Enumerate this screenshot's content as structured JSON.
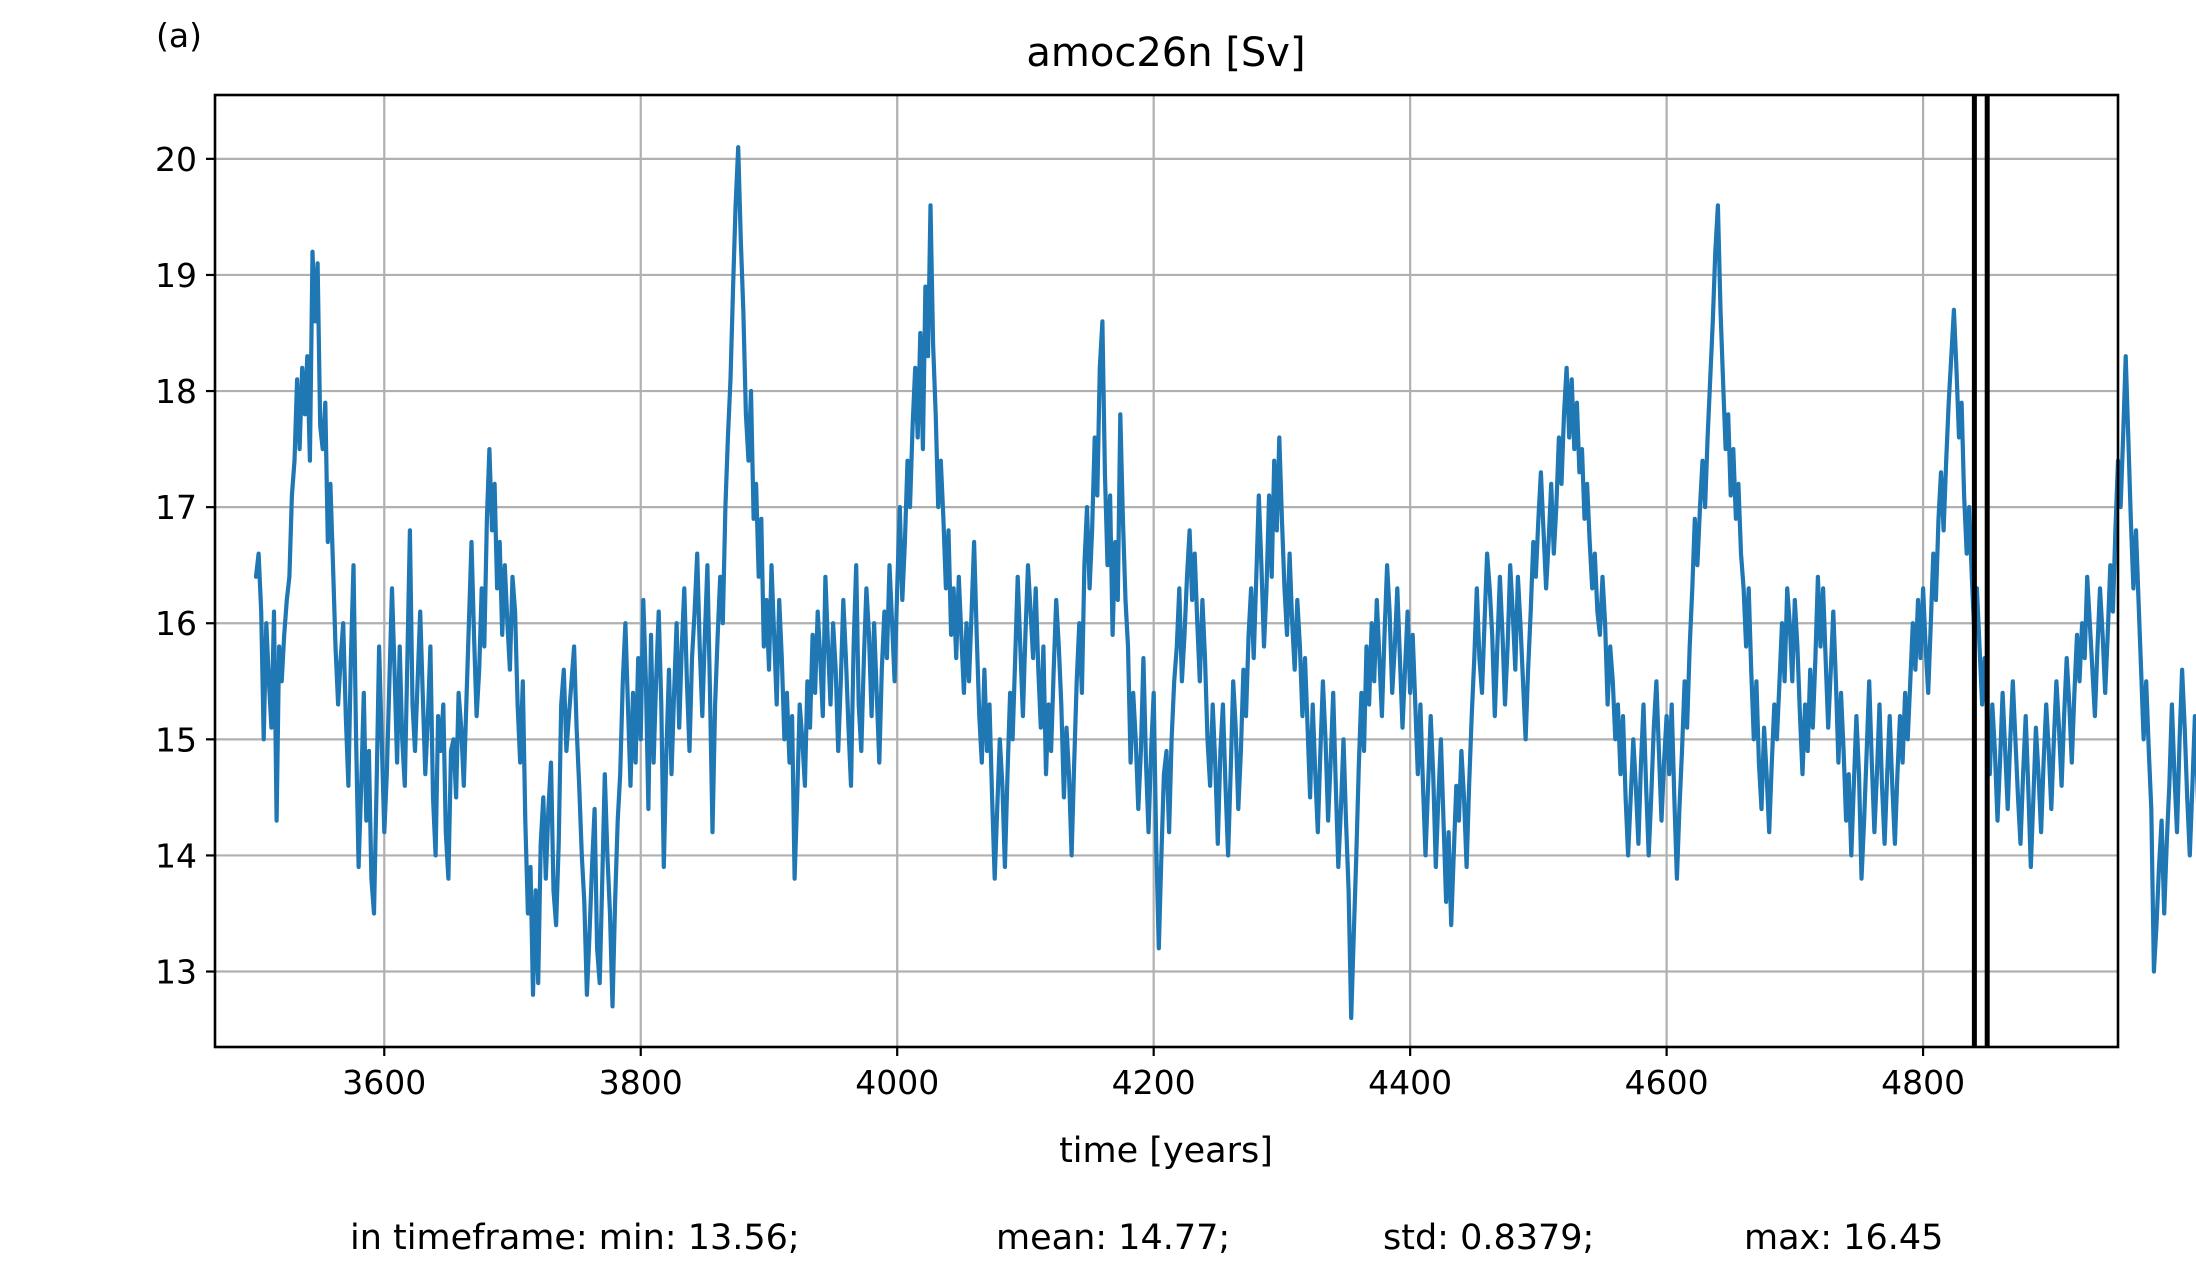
{
  "chart_data": {
    "type": "line",
    "panel_label": "(a)",
    "title": "amoc26n [Sv]",
    "xlabel": "time [years]",
    "ylabel": "",
    "xlim": [
      3468,
      4952
    ],
    "ylim": [
      12.35,
      20.55
    ],
    "xticks": [
      3600,
      3800,
      4000,
      4200,
      4400,
      4600,
      4800
    ],
    "yticks": [
      13,
      14,
      15,
      16,
      17,
      18,
      19,
      20
    ],
    "grid": true,
    "legend": "none",
    "vertical_markers": [
      4840,
      4850
    ],
    "stats": {
      "prefix": "in timeframe: min: 13.56;",
      "mean": "mean: 14.77;",
      "std": "std: 0.8379;",
      "max": "max: 16.45"
    },
    "colors": {
      "series": "#1f77b4",
      "grid": "#b0b0b0",
      "markers": "#000000"
    },
    "series": [
      {
        "x_start": 3500,
        "x_step": 2,
        "values": [
          16.4,
          16.6,
          16.1,
          15.0,
          16.0,
          15.5,
          15.1,
          16.1,
          14.3,
          15.8,
          15.5,
          15.9,
          16.2,
          16.4,
          17.1,
          17.4,
          18.1,
          17.5,
          18.2,
          17.8,
          18.3,
          17.4,
          19.2,
          18.6,
          19.1,
          17.7,
          17.5,
          17.9,
          16.7,
          17.2,
          16.5,
          15.8,
          15.3,
          15.7,
          16.0,
          15.2,
          14.6,
          15.7,
          16.5,
          15.0,
          13.9,
          14.6,
          15.4,
          14.3,
          14.9,
          13.8,
          13.5,
          14.6,
          15.8,
          15.0,
          14.2,
          14.7,
          15.5,
          16.3,
          15.6,
          14.8,
          15.8,
          15.0,
          14.6,
          15.7,
          16.8,
          15.3,
          14.9,
          15.5,
          16.1,
          15.4,
          14.7,
          15.2,
          15.8,
          14.5,
          14.0,
          15.2,
          14.9,
          15.3,
          14.2,
          13.8,
          14.9,
          15.0,
          14.5,
          15.4,
          15.1,
          14.6,
          15.3,
          16.0,
          16.7,
          15.9,
          15.2,
          15.6,
          16.3,
          15.8,
          16.9,
          17.5,
          16.8,
          17.2,
          16.3,
          16.7,
          15.9,
          16.5,
          16.0,
          15.6,
          16.4,
          16.1,
          15.3,
          14.8,
          15.5,
          14.3,
          13.5,
          13.9,
          12.8,
          13.7,
          12.9,
          14.1,
          14.5,
          13.8,
          14.4,
          14.8,
          13.7,
          13.4,
          14.1,
          15.3,
          15.6,
          14.9,
          15.2,
          15.5,
          15.8,
          15.1,
          14.6,
          14.0,
          13.6,
          12.8,
          13.3,
          13.9,
          14.4,
          13.2,
          12.9,
          13.8,
          14.7,
          14.0,
          13.5,
          12.7,
          13.6,
          14.3,
          14.7,
          15.5,
          16.0,
          15.3,
          14.6,
          15.4,
          14.8,
          15.7,
          15.0,
          16.2,
          15.5,
          14.4,
          15.9,
          14.8,
          15.5,
          16.1,
          15.3,
          13.9,
          14.9,
          15.6,
          14.7,
          15.4,
          16.0,
          15.1,
          15.8,
          16.3,
          15.5,
          14.9,
          15.7,
          16.1,
          16.6,
          15.8,
          15.2,
          15.9,
          16.5,
          15.4,
          14.2,
          15.3,
          15.9,
          16.4,
          16.0,
          17.0,
          17.6,
          18.1,
          18.9,
          19.6,
          20.1,
          19.3,
          18.7,
          17.8,
          17.4,
          18.0,
          16.9,
          17.2,
          16.4,
          16.9,
          15.8,
          16.2,
          15.6,
          16.5,
          15.9,
          15.3,
          16.2,
          15.7,
          15.0,
          15.4,
          14.8,
          15.2,
          13.8,
          14.5,
          15.3,
          15.0,
          14.6,
          15.5,
          15.1,
          15.9,
          15.4,
          16.1,
          15.7,
          15.2,
          16.4,
          15.8,
          15.3,
          16.0,
          15.6,
          14.9,
          15.5,
          16.2,
          15.7,
          15.1,
          14.6,
          15.8,
          16.5,
          15.3,
          14.9,
          15.7,
          16.3,
          15.9,
          15.2,
          16.0,
          15.4,
          14.8,
          15.6,
          16.1,
          15.7,
          16.5,
          16.0,
          15.5,
          16.3,
          17.0,
          16.2,
          16.7,
          17.4,
          17.0,
          17.7,
          18.2,
          17.6,
          18.5,
          17.5,
          18.9,
          18.3,
          19.6,
          18.4,
          17.8,
          17.0,
          17.4,
          16.9,
          16.3,
          16.8,
          15.9,
          16.3,
          15.7,
          16.4,
          15.9,
          15.4,
          16.0,
          15.5,
          16.1,
          16.7,
          15.9,
          15.2,
          14.8,
          15.6,
          14.9,
          15.3,
          14.5,
          13.8,
          14.4,
          15.0,
          14.6,
          13.9,
          14.7,
          15.4,
          15.0,
          15.7,
          16.4,
          15.8,
          15.2,
          15.9,
          16.5,
          16.1,
          15.7,
          16.3,
          15.6,
          15.1,
          15.8,
          14.7,
          15.3,
          14.9,
          15.6,
          16.2,
          15.8,
          15.3,
          14.5,
          15.1,
          14.7,
          14.0,
          14.8,
          15.5,
          16.0,
          15.4,
          16.5,
          17.0,
          16.3,
          16.8,
          17.6,
          17.1,
          18.2,
          18.6,
          17.3,
          16.5,
          17.1,
          15.9,
          16.7,
          16.2,
          17.8,
          16.9,
          16.2,
          15.8,
          14.8,
          15.4,
          15.0,
          14.4,
          14.9,
          15.7,
          14.8,
          14.2,
          14.9,
          15.4,
          14.1,
          13.2,
          14.0,
          14.7,
          14.9,
          14.2,
          15.0,
          15.5,
          15.8,
          16.3,
          15.5,
          15.9,
          16.4,
          16.8,
          16.2,
          16.6,
          16.0,
          15.5,
          16.2,
          15.7,
          15.0,
          14.6,
          15.3,
          14.8,
          14.1,
          14.9,
          15.3,
          14.6,
          14.0,
          14.7,
          15.5,
          15.1,
          14.4,
          14.9,
          15.6,
          15.2,
          15.9,
          16.3,
          15.7,
          16.4,
          17.1,
          16.5,
          15.8,
          16.3,
          17.1,
          16.4,
          17.4,
          16.8,
          17.6,
          16.9,
          16.3,
          15.9,
          16.6,
          16.0,
          15.6,
          16.2,
          15.8,
          15.2,
          15.7,
          15.1,
          14.5,
          15.3,
          14.7,
          14.2,
          14.9,
          15.5,
          15.0,
          14.3,
          14.8,
          15.4,
          14.6,
          13.9,
          14.4,
          15.0,
          14.3,
          13.7,
          12.6,
          13.3,
          14.0,
          14.8,
          15.4,
          14.9,
          15.8,
          15.3,
          16.0,
          15.5,
          16.2,
          15.7,
          15.2,
          15.9,
          16.5,
          16.1,
          15.4,
          15.8,
          16.3,
          15.7,
          15.1,
          15.6,
          16.1,
          15.4,
          15.9,
          15.3,
          14.7,
          15.3,
          14.6,
          14.0,
          14.6,
          15.2,
          14.7,
          13.9,
          14.5,
          15.0,
          14.3,
          13.6,
          14.2,
          13.4,
          14.0,
          14.6,
          14.3,
          14.9,
          14.5,
          13.9,
          14.6,
          15.2,
          15.7,
          16.3,
          15.7,
          15.4,
          16.0,
          16.6,
          16.3,
          15.9,
          15.2,
          15.8,
          16.4,
          15.9,
          15.3,
          15.8,
          16.5,
          16.1,
          15.6,
          16.4,
          16.0,
          15.5,
          15.0,
          15.6,
          16.1,
          16.7,
          16.4,
          16.9,
          17.3,
          16.8,
          16.3,
          16.7,
          17.2,
          16.6,
          17.0,
          17.6,
          17.2,
          17.8,
          18.2,
          17.6,
          18.1,
          17.5,
          17.9,
          17.3,
          17.5,
          16.9,
          17.2,
          16.7,
          16.3,
          16.6,
          16.1,
          15.9,
          16.4,
          16.0,
          15.3,
          15.8,
          15.5,
          15.0,
          15.3,
          14.7,
          15.2,
          14.5,
          14.0,
          14.5,
          15.0,
          14.6,
          14.1,
          14.8,
          15.3,
          14.6,
          14.0,
          14.5,
          15.1,
          15.5,
          14.9,
          14.3,
          14.8,
          15.2,
          14.7,
          15.3,
          14.5,
          13.8,
          14.4,
          14.9,
          15.5,
          15.1,
          15.8,
          16.3,
          16.9,
          16.5,
          17.0,
          17.4,
          17.0,
          17.6,
          18.1,
          18.6,
          19.2,
          19.6,
          18.7,
          18.1,
          17.5,
          17.8,
          17.1,
          17.5,
          16.9,
          17.2,
          16.6,
          16.3,
          15.8,
          16.3,
          15.6,
          15.0,
          15.5,
          14.8,
          14.4,
          15.1,
          14.7,
          14.2,
          14.8,
          15.3,
          15.0,
          15.5,
          16.0,
          15.5,
          16.3,
          16.0,
          15.5,
          16.2,
          15.8,
          15.2,
          14.7,
          15.3,
          14.9,
          15.6,
          15.1,
          15.7,
          16.4,
          15.8,
          16.3,
          15.7,
          15.1,
          15.6,
          16.1,
          15.5,
          14.8,
          15.4,
          14.9,
          14.3,
          14.7,
          14.0,
          14.6,
          15.2,
          14.7,
          13.8,
          14.3,
          14.9,
          15.5,
          14.8,
          14.2,
          14.7,
          15.3,
          14.6,
          14.1,
          14.7,
          15.2,
          14.6,
          14.1,
          14.7,
          15.2,
          14.8,
          15.4,
          15.0,
          15.5,
          16.0,
          15.6,
          16.2,
          15.7,
          16.3,
          15.8,
          15.4,
          16.0,
          16.6,
          16.2,
          16.9,
          17.3,
          16.8,
          17.4,
          17.9,
          18.3,
          18.7,
          18.2,
          17.6,
          17.9,
          17.1,
          16.6,
          17.0,
          16.4,
          15.9,
          16.3,
          15.8,
          15.3,
          15.7,
          15.2,
          14.7,
          15.3,
          14.9,
          14.3,
          14.8,
          15.4,
          14.9,
          14.4,
          15.0,
          15.5,
          15.0,
          14.5,
          14.1,
          14.7,
          15.2,
          14.6,
          13.9,
          14.5,
          15.1,
          14.7,
          14.2,
          14.8,
          15.3,
          14.9,
          14.4,
          15.0,
          15.5,
          15.1,
          14.6,
          15.2,
          15.7,
          15.3,
          14.8,
          15.4,
          15.9,
          15.5,
          16.0,
          15.7,
          16.4,
          16.0,
          15.6,
          15.2,
          15.8,
          16.3,
          15.9,
          15.4,
          15.9,
          16.5,
          16.1,
          16.8,
          17.4,
          17.0,
          17.6,
          18.3,
          17.6,
          16.9,
          16.3,
          16.8,
          16.2,
          15.6,
          15.0,
          15.5,
          14.9,
          14.4,
          13.0,
          13.4,
          13.9,
          14.3,
          13.5,
          14.1,
          14.6,
          15.3,
          14.7,
          14.2,
          15.0,
          15.6,
          15.1,
          14.5,
          14.0,
          14.6,
          15.2,
          14.6,
          13.9,
          14.5,
          15.1,
          14.7,
          14.2,
          14.8,
          15.3,
          14.9,
          15.4,
          15.0,
          14.5,
          15.1,
          15.6,
          15.2,
          14.7,
          15.3,
          15.8,
          15.4,
          16.1,
          15.8,
          16.3,
          16.8,
          17.1,
          17.6,
          17.3,
          17.8,
          17.5,
          18.0,
          17.7,
          18.3,
          18.6,
          17.9,
          16.8,
          15.9,
          15.3,
          15.7,
          16.2,
          15.6,
          15.0,
          14.5,
          14.0,
          13.6,
          13.2,
          13.0,
          12.8,
          13.5,
          14.1,
          14.7,
          15.3,
          14.9,
          15.6,
          16.2,
          16.8,
          17.3,
          17.8,
          18.2,
          18.6,
          17.9,
          17.2,
          16.5,
          15.8,
          15.2,
          14.8,
          14.4,
          14.9,
          14.2
        ]
      }
    ]
  }
}
